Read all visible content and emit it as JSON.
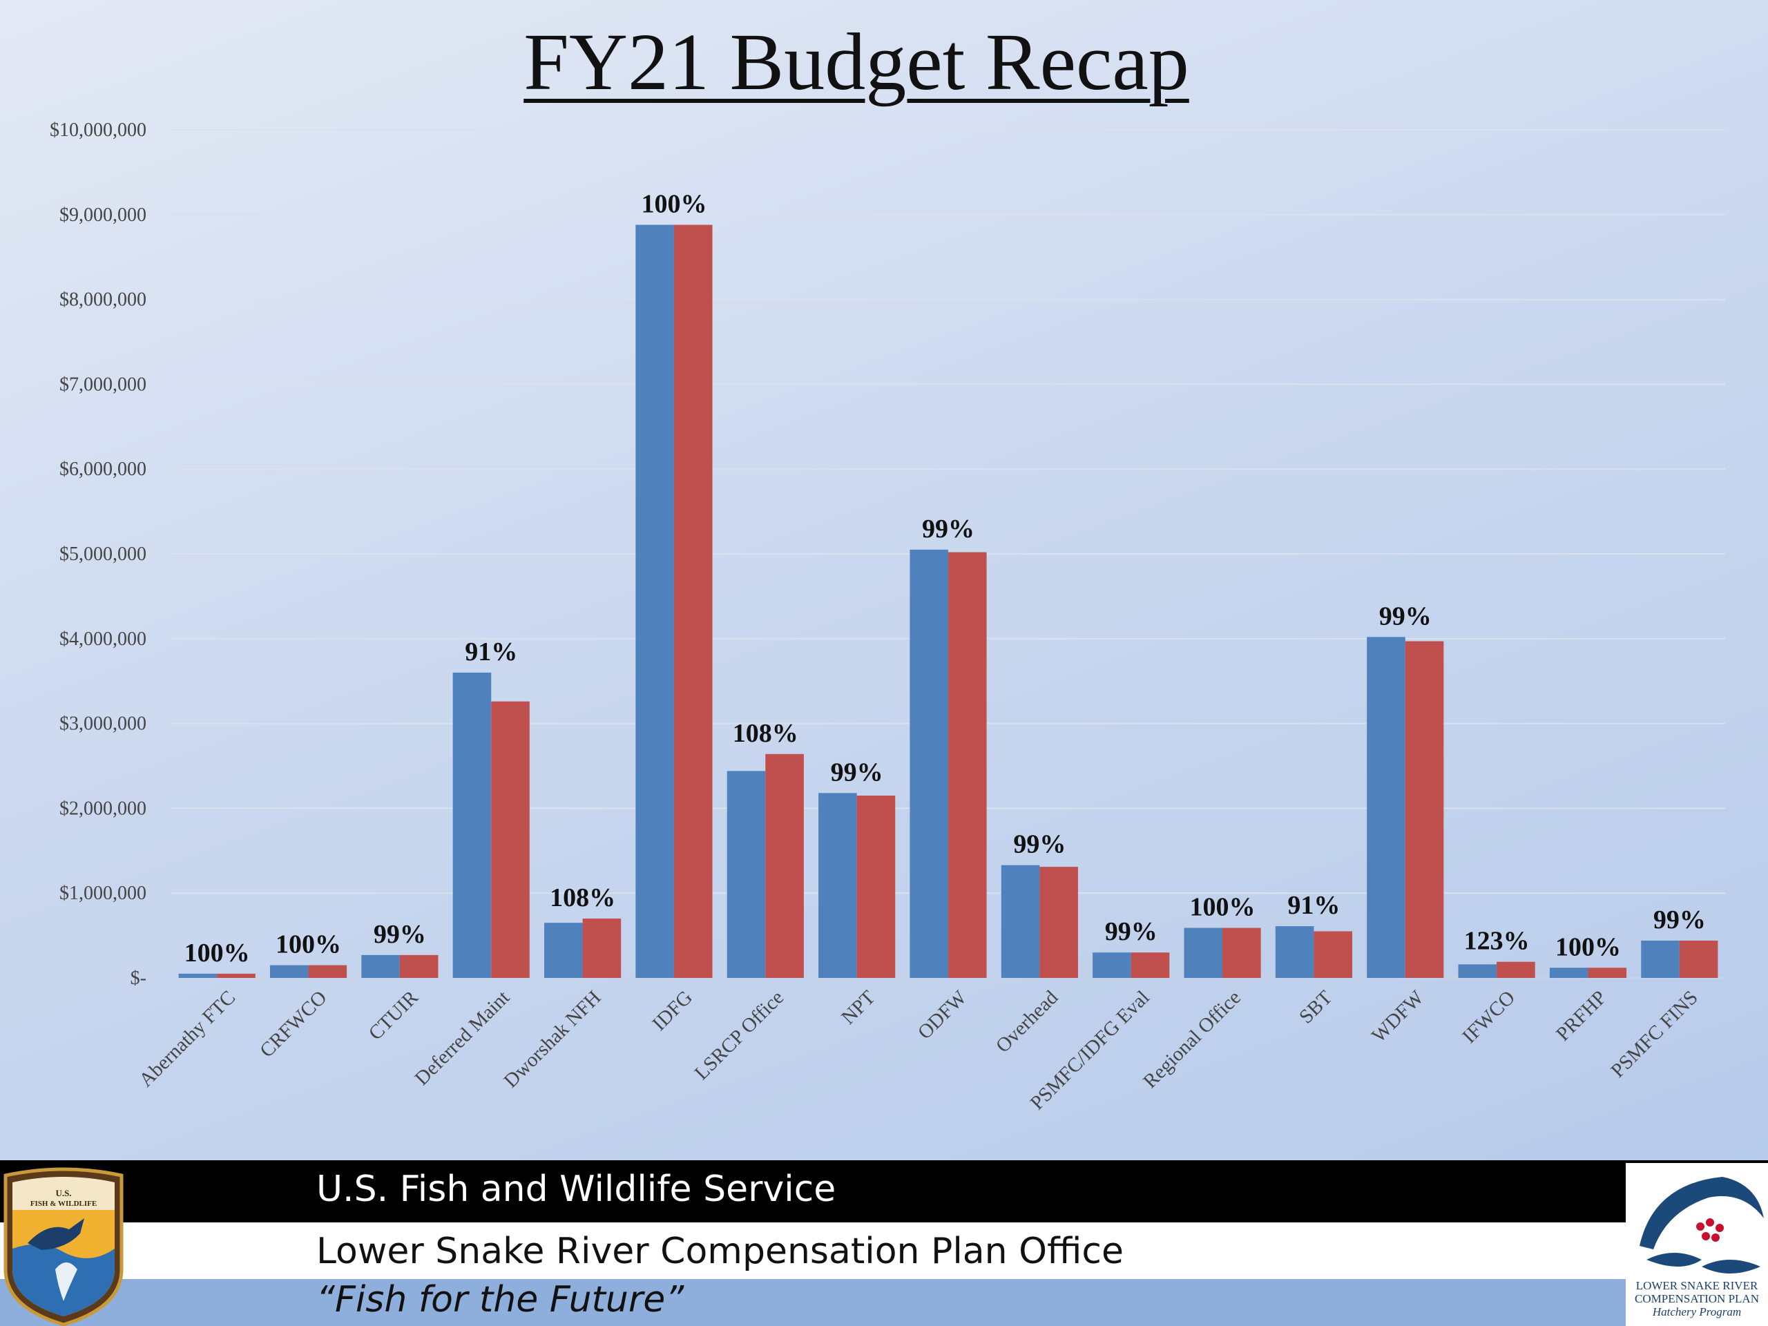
{
  "title": "FY21 Budget Recap",
  "chart_data": {
    "type": "bar",
    "title": "FY21 Budget Recap",
    "categories": [
      "Abernathy FTC",
      "CRFWCO",
      "CTUIR",
      "Deferred Maint",
      "Dworshak NFH",
      "IDFG",
      "LSRCP Office",
      "NPT",
      "ODFW",
      "Overhead",
      "PSMFC/IDFG Eval",
      "Regional Office",
      "SBT",
      "WDFW",
      "IFWCO",
      "PRFHP",
      "PSMFC FINS"
    ],
    "series": [
      {
        "color": "#4f81bd",
        "values": [
          50000,
          150000,
          270000,
          3600000,
          650000,
          8880000,
          2440000,
          2180000,
          5050000,
          1330000,
          300000,
          590000,
          610000,
          4020000,
          160000,
          120000,
          440000
        ]
      },
      {
        "color": "#c0504d",
        "values": [
          50000,
          150000,
          270000,
          3260000,
          700000,
          8880000,
          2640000,
          2150000,
          5020000,
          1310000,
          300000,
          590000,
          550000,
          3970000,
          190000,
          120000,
          440000
        ]
      }
    ],
    "data_labels": [
      "100%",
      "100%",
      "99%",
      "91%",
      "108%",
      "100%",
      "108%",
      "99%",
      "99%",
      "99%",
      "99%",
      "100%",
      "91%",
      "99%",
      "123%",
      "100%",
      "99%"
    ],
    "y_tick_labels": [
      "$-",
      "$1,000,000",
      "$2,000,000",
      "$3,000,000",
      "$4,000,000",
      "$5,000,000",
      "$6,000,000",
      "$7,000,000",
      "$8,000,000",
      "$9,000,000",
      "$10,000,000"
    ],
    "ylim": [
      0,
      10000000
    ],
    "grid": true,
    "legend": "none"
  },
  "footer": {
    "agency": "U.S. Fish and Wildlife Service",
    "office": "Lower Snake River Compensation Plan Office",
    "motto": "“Fish for the Future”"
  },
  "logos": {
    "left": {
      "icon": "usfws-shield-logo",
      "text": "U.S. FISH & WILDLIFE SERVICE"
    },
    "right": {
      "icon": "lsrcp-fish-logo",
      "line1": "LOWER SNAKE RIVER",
      "line2": "COMPENSATION PLAN",
      "line3": "Hatchery Program"
    }
  }
}
